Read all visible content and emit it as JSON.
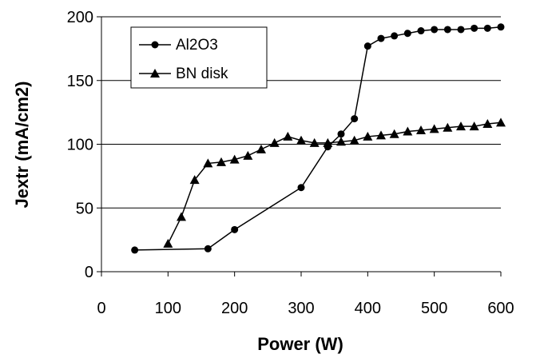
{
  "chart_data": {
    "type": "line",
    "title": "",
    "xlabel": "Power (W)",
    "ylabel": "Jextr (mA/cm2)",
    "xlim": [
      0,
      600
    ],
    "ylim": [
      0,
      200
    ],
    "x_ticks": [
      0,
      100,
      200,
      300,
      400,
      500,
      600
    ],
    "y_ticks": [
      0,
      50,
      100,
      150,
      200
    ],
    "grid": "horizontal",
    "legend_position": "top-left",
    "series": [
      {
        "name": "Al2O3",
        "marker": "circle",
        "color": "#000000",
        "x": [
          50,
          160,
          200,
          300,
          340,
          360,
          380,
          400,
          420,
          440,
          460,
          480,
          500,
          520,
          540,
          560,
          580,
          600
        ],
        "y": [
          17,
          18,
          33,
          66,
          98,
          108,
          120,
          177,
          183,
          185,
          187,
          189,
          190,
          190,
          190,
          191,
          191,
          192
        ]
      },
      {
        "name": "BN disk",
        "marker": "triangle",
        "color": "#000000",
        "x": [
          100,
          120,
          140,
          160,
          180,
          200,
          220,
          240,
          260,
          280,
          300,
          320,
          340,
          360,
          380,
          400,
          420,
          440,
          460,
          480,
          500,
          520,
          540,
          560,
          580,
          600
        ],
        "y": [
          22,
          43,
          72,
          85,
          86,
          88,
          91,
          96,
          101,
          106,
          103,
          101,
          101,
          102,
          103,
          106,
          107,
          108,
          110,
          111,
          112,
          113,
          114,
          114,
          116,
          117
        ]
      }
    ]
  }
}
